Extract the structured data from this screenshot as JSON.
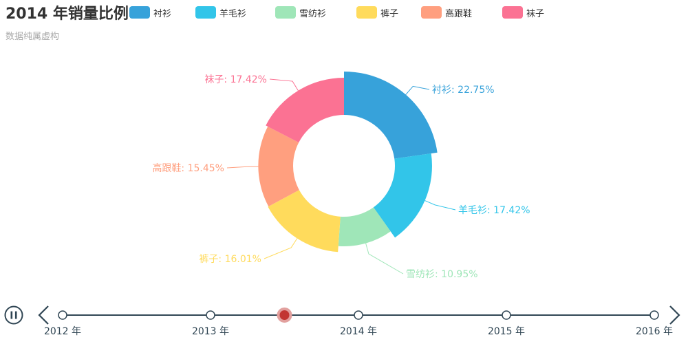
{
  "title": "2014 年销量比例",
  "subtitle": "数据纯属虚构",
  "colors": [
    "#37a2da",
    "#32c5e9",
    "#9fe6b8",
    "#ffdb5c",
    "#ff9f7f",
    "#fb7293"
  ],
  "chart_data": {
    "type": "pie",
    "variant": "rose-donut",
    "title": "2014 年销量比例",
    "subtitle": "数据纯属虚构",
    "legend_position": "top",
    "categories": [
      "衬衫",
      "羊毛衫",
      "雪纺衫",
      "裤子",
      "高跟鞋",
      "袜子"
    ],
    "values": [
      22.75,
      17.42,
      10.95,
      16.01,
      15.45,
      17.42
    ],
    "unit": "%",
    "labels": [
      "衬衫: 22.75%",
      "羊毛衫: 17.42%",
      "雪纺衫: 10.95%",
      "裤子: 16.01%",
      "高跟鞋: 15.45%",
      "袜子: 17.42%"
    ]
  },
  "timeline": {
    "years": [
      "2012 年",
      "2013 年",
      "2014 年",
      "2015 年",
      "2016 年"
    ],
    "current_index": 2,
    "progress": 0.5,
    "playing": true,
    "controls": {
      "play_pause_icon": "pause-icon",
      "prev_icon": "chevron-left-icon",
      "next_icon": "chevron-right-icon"
    }
  }
}
